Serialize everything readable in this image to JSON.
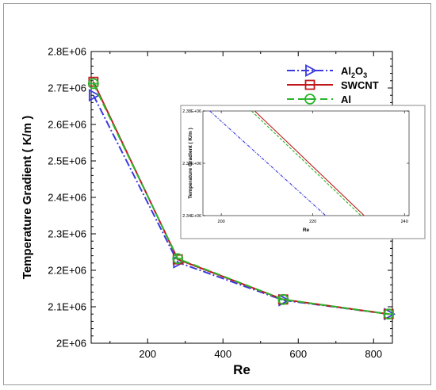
{
  "chart_data": [
    {
      "type": "line",
      "xlabel": "Re",
      "ylabel": "Temperature Gradient ( K/m )",
      "xlim": [
        50,
        850
      ],
      "ylim": [
        2000000,
        2800000
      ],
      "xticks": [
        200,
        400,
        600,
        800
      ],
      "xtick_labels": [
        "200",
        "400",
        "600",
        "800"
      ],
      "yticks": [
        2000000,
        2100000,
        2200000,
        2300000,
        2400000,
        2500000,
        2600000,
        2700000,
        2800000
      ],
      "ytick_labels": [
        "2E+06",
        "2.1E+06",
        "2.2E+06",
        "2.3E+06",
        "2.4E+06",
        "2.5E+06",
        "2.6E+06",
        "2.7E+06",
        "2.8E+06"
      ],
      "grid": false,
      "legend": "top-right",
      "series": [
        {
          "name": "Al2O3",
          "label_parts": [
            "Al",
            "2",
            "O",
            "3"
          ],
          "color": "#3a3adf",
          "dash": "10 3 2 3",
          "marker": "triangle-right",
          "x": [
            56,
            280,
            560,
            840
          ],
          "y": [
            2680000,
            2222000,
            2118000,
            2080000
          ]
        },
        {
          "name": "SWCNT",
          "label_parts": [
            "SWCNT"
          ],
          "color": "#c0191c",
          "dash": "",
          "marker": "square",
          "x": [
            56,
            280,
            560,
            840
          ],
          "y": [
            2717000,
            2230000,
            2120000,
            2080000
          ]
        },
        {
          "name": "Al",
          "label_parts": [
            "Al"
          ],
          "color": "#2bb52b",
          "dash": "9 5",
          "marker": "circle",
          "x": [
            56,
            280,
            560,
            840
          ],
          "y": [
            2712000,
            2232000,
            2120000,
            2080000
          ]
        }
      ]
    },
    {
      "type": "line",
      "role": "inset",
      "xlabel": "Re",
      "ylabel": "Temperature Gradient ( K/m )",
      "xlim": [
        196,
        241
      ],
      "ylim": [
        2340000,
        2380000
      ],
      "xticks": [
        200,
        220,
        240
      ],
      "xtick_labels": [
        "200",
        "220",
        "240"
      ],
      "yticks": [
        2340000,
        2360000,
        2380000
      ],
      "ytick_labels": [
        "2.34E+06",
        "2.36E+06",
        "2.38E+06"
      ],
      "series": [
        {
          "name": "Al2O3",
          "color": "#3a3adf",
          "dash": "4 1.5 1 1.5",
          "x": [
            197.5,
            222.8
          ],
          "y": [
            2380000,
            2340000
          ]
        },
        {
          "name": "SWCNT",
          "color": "#c0191c",
          "dash": "",
          "x": [
            207.3,
            231.2
          ],
          "y": [
            2380000,
            2340000
          ]
        },
        {
          "name": "Al",
          "color": "#2bb52b",
          "dash": "3.5 2",
          "x": [
            206.6,
            230.5
          ],
          "y": [
            2380000,
            2340000
          ]
        }
      ]
    }
  ]
}
